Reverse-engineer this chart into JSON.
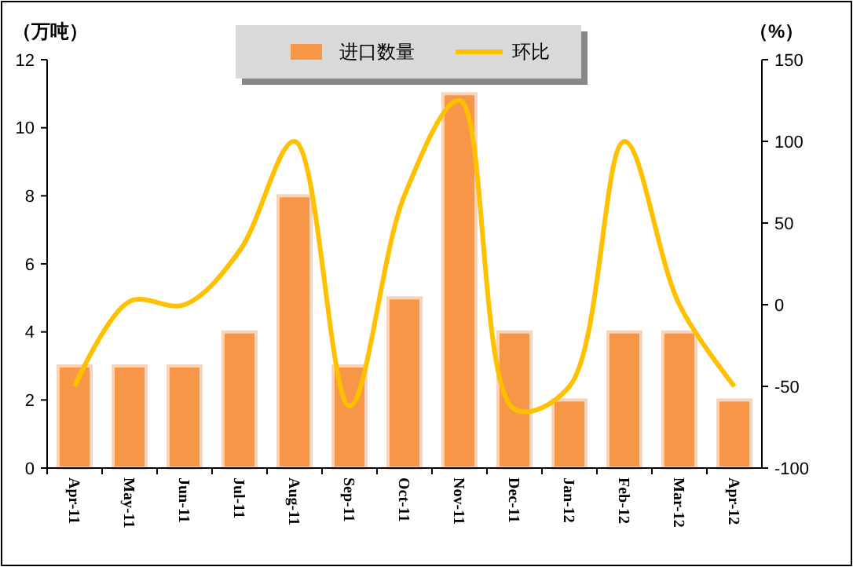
{
  "chart_data": {
    "type": "bar",
    "ylabel": "（万吨）",
    "y2label": "（%）",
    "categories": [
      "Apr-11",
      "May-11",
      "Jun-11",
      "Jul-11",
      "Aug-11",
      "Sep-11",
      "Oct-11",
      "Nov-11",
      "Dec-11",
      "Jan-12",
      "Feb-12",
      "Mar-12",
      "Apr-12"
    ],
    "series": [
      {
        "name": "进口数量",
        "color": "#f79646",
        "values": [
          3,
          3,
          3,
          4,
          8,
          3,
          5,
          11,
          4,
          2,
          4,
          4,
          2
        ]
      },
      {
        "name": "环比",
        "type": "line",
        "axis": "y2",
        "color": "#ffc000",
        "values": [
          -50,
          2,
          0,
          33,
          100,
          -62,
          67,
          125,
          -64,
          -50,
          100,
          0,
          -50
        ]
      }
    ],
    "ylim": [
      0,
      12
    ],
    "yticks": [
      0,
      2,
      4,
      6,
      8,
      10,
      12
    ],
    "y2lim": [
      -100,
      150
    ],
    "y2ticks": [
      -100,
      -50,
      0,
      50,
      100,
      150
    ],
    "legend": "top",
    "grid": false,
    "marker": "none",
    "line_style": "solid"
  }
}
